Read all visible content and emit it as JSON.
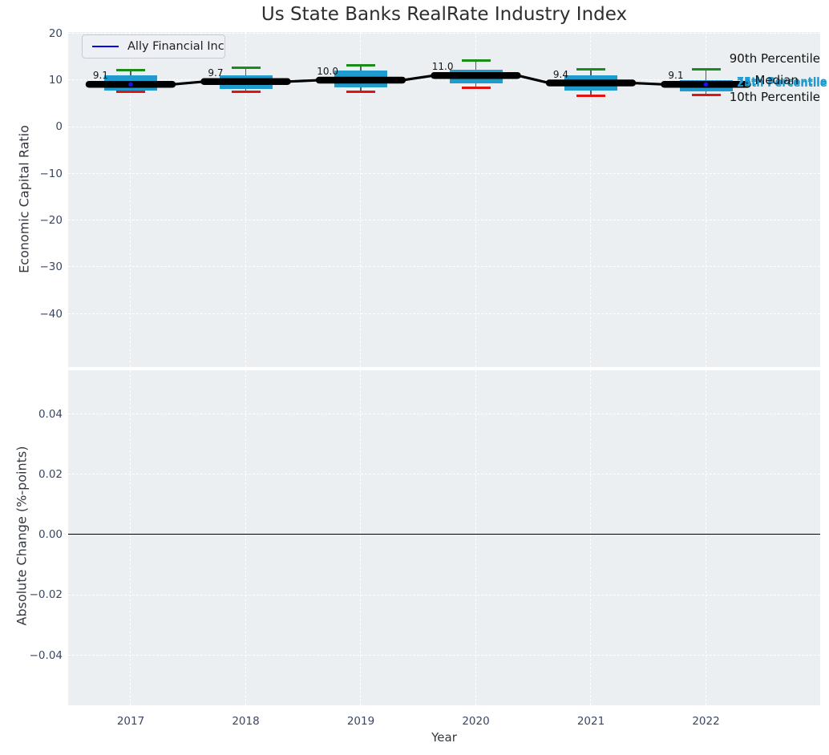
{
  "title": "Us State Banks RealRate Industry Index",
  "legend": {
    "label": "Ally Financial Inc",
    "line_color": "#0202f0"
  },
  "annotations": {
    "p90": "90th Percentile",
    "p75": "75th Percentile",
    "median": "Median",
    "p25": "25th Percentile",
    "p10": "10th Percentile"
  },
  "chart_data": {
    "type": "boxplot+line",
    "title": "Us State Banks RealRate Industry Index",
    "xlabel": "Year",
    "categories": [
      "2017",
      "2018",
      "2019",
      "2020",
      "2021",
      "2022"
    ],
    "company": {
      "name": "Ally Financial Inc",
      "values": [
        9.1,
        9.7,
        10.0,
        11.0,
        9.4,
        9.1
      ],
      "labels": [
        "9.1",
        "9.7",
        "10.0",
        "11.0",
        "9.4",
        "9.1"
      ],
      "marker_indices": [
        0,
        5
      ]
    },
    "percentiles": {
      "p90": [
        12.2,
        12.6,
        13.2,
        14.2,
        12.3,
        12.3
      ],
      "p75": [
        11.1,
        11.1,
        12.1,
        12.3,
        11.1,
        10.0
      ],
      "median": [
        9.0,
        9.6,
        10.0,
        11.0,
        9.4,
        9.2
      ],
      "p25": [
        7.8,
        8.1,
        8.5,
        9.3,
        7.7,
        7.6
      ],
      "p10": [
        7.5,
        7.5,
        7.6,
        8.3,
        6.6,
        6.8
      ]
    },
    "top_panel": {
      "ylabel": "Economic Capital Ratio",
      "ylim": [
        -51.4,
        20.3
      ],
      "yticks": [
        {
          "label": "20",
          "value": 20
        },
        {
          "label": "10",
          "value": 10
        },
        {
          "label": "0",
          "value": 0
        },
        {
          "label": "−10",
          "value": -10
        },
        {
          "label": "−20",
          "value": -20
        },
        {
          "label": "−30",
          "value": -30
        },
        {
          "label": "−40",
          "value": -40
        }
      ]
    },
    "bottom_panel": {
      "ylabel": "Absolute Change (%-points)",
      "ylim": [
        -0.0566,
        0.0546
      ],
      "yticks": [
        {
          "label": "0.04",
          "value": 0.04
        },
        {
          "label": "0.02",
          "value": 0.02
        },
        {
          "label": "0.00",
          "value": 0.0
        },
        {
          "label": "−0.02",
          "value": -0.02
        },
        {
          "label": "−0.04",
          "value": -0.04
        }
      ],
      "zero_line": 0.0,
      "note": "no change data visible; only zero line shown"
    },
    "grid": "white dashed on light gray panels",
    "legend_position": "upper left",
    "colors": {
      "box_fill": "#1f9bce",
      "cap_90": "#1a8c1a",
      "cap_10": "#df1413",
      "whisker": "#5a5a5a",
      "company_line": "#000000",
      "company_marker": "#1515e6",
      "legend_line": "#0202f0",
      "percentile_label_cyan": "#1a9ad0",
      "panel_bg": "#eceff1",
      "tick_text": "#3a4763"
    }
  }
}
